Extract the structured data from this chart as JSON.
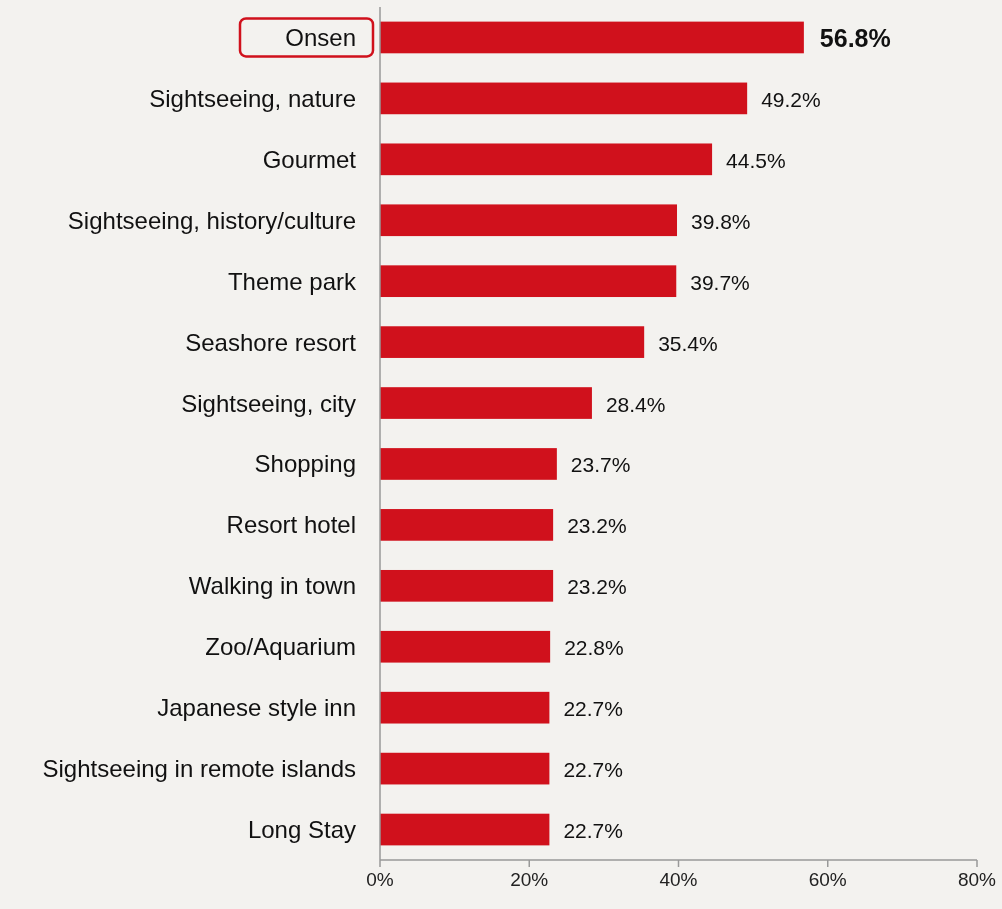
{
  "chart_data": {
    "type": "bar",
    "orientation": "horizontal",
    "categories": [
      "Onsen",
      "Sightseeing, nature",
      "Gourmet",
      "Sightseeing, history/culture",
      "Theme park",
      "Seashore resort",
      "Sightseeing, city",
      "Shopping",
      "Resort hotel",
      "Walking in town",
      "Zoo/Aquarium",
      "Japanese style inn",
      "Sightseeing in remote islands",
      "Long Stay"
    ],
    "values": [
      56.8,
      49.2,
      44.5,
      39.8,
      39.7,
      35.4,
      28.4,
      23.7,
      23.2,
      23.2,
      22.8,
      22.7,
      22.7,
      22.7
    ],
    "value_labels": [
      "56.8%",
      "49.2%",
      "44.5%",
      "39.8%",
      "39.7%",
      "35.4%",
      "28.4%",
      "23.7%",
      "23.2%",
      "23.2%",
      "22.8%",
      "22.7%",
      "22.7%",
      "22.7%"
    ],
    "color": "#d0111c",
    "xlim": [
      0,
      80
    ],
    "xticks": [
      {
        "value": 0,
        "label": "0%"
      },
      {
        "value": 20,
        "label": "20%"
      },
      {
        "value": 40,
        "label": "40%"
      },
      {
        "value": 60,
        "label": "60%"
      },
      {
        "value": 80,
        "label": "80%"
      }
    ]
  }
}
